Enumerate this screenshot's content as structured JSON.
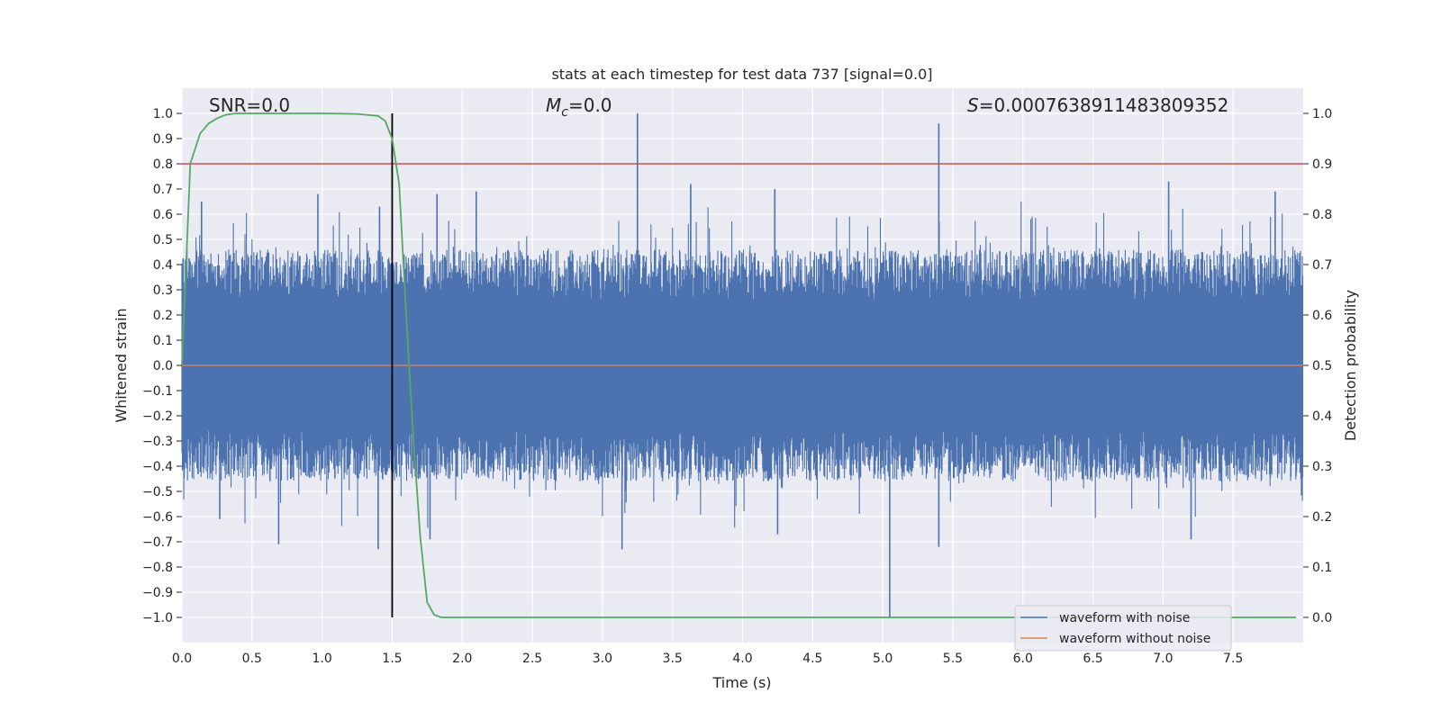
{
  "chart_data": {
    "type": "line",
    "title": "stats at each timestep for test data 737 [signal=0.0]",
    "xlabel": "Time (s)",
    "ylabel": "Whitened strain",
    "y2label": "Detection probability",
    "xlim": [
      0.0,
      8.0
    ],
    "ylim": [
      -1.1,
      1.1
    ],
    "y2lim": [
      -0.05,
      1.05
    ],
    "x_ticks": [
      "0.0",
      "0.5",
      "1.0",
      "1.5",
      "2.0",
      "2.5",
      "3.0",
      "3.5",
      "4.0",
      "4.5",
      "5.0",
      "5.5",
      "6.0",
      "6.5",
      "7.0",
      "7.5"
    ],
    "x_tick_values": [
      0.0,
      0.5,
      1.0,
      1.5,
      2.0,
      2.5,
      3.0,
      3.5,
      4.0,
      4.5,
      5.0,
      5.5,
      6.0,
      6.5,
      7.0,
      7.5
    ],
    "y_ticks": [
      "1.0",
      "0.9",
      "0.8",
      "0.7",
      "0.6",
      "0.5",
      "0.4",
      "0.3",
      "0.2",
      "0.1",
      "0.0",
      "−0.1",
      "−0.2",
      "−0.3",
      "−0.4",
      "−0.5",
      "−0.6",
      "−0.7",
      "−0.8",
      "−0.9",
      "−1.0"
    ],
    "y_tick_values": [
      1.0,
      0.9,
      0.8,
      0.7,
      0.6,
      0.5,
      0.4,
      0.3,
      0.2,
      0.1,
      0.0,
      -0.1,
      -0.2,
      -0.3,
      -0.4,
      -0.5,
      -0.6,
      -0.7,
      -0.8,
      -0.9,
      -1.0
    ],
    "y2_ticks": [
      "1.0",
      "0.9",
      "0.8",
      "0.7",
      "0.6",
      "0.5",
      "0.4",
      "0.3",
      "0.2",
      "0.1",
      "0.0"
    ],
    "y2_tick_values": [
      1.0,
      0.9,
      0.8,
      0.7,
      0.6,
      0.5,
      0.4,
      0.3,
      0.2,
      0.1,
      0.0
    ],
    "grid": true,
    "annotations": {
      "snr": "SNR=0.0",
      "mc_symbol": "M",
      "mc_sub": "c",
      "mc_value": "=0.0",
      "s_symbol": "S",
      "s_value": "=0.0007638911483809352"
    },
    "threshold": {
      "value": 0.9,
      "axis": "y2",
      "color": "#c44e52"
    },
    "vline": {
      "x": 1.5,
      "ymin": -1.0,
      "ymax": 1.0,
      "color": "#000000"
    },
    "noise_series": {
      "name": "waveform with noise",
      "color": "#4c72b0",
      "envelope_mean": 0.36,
      "envelope_spread": 0.1,
      "spikes": [
        {
          "x": 0.14,
          "y": 0.65
        },
        {
          "x": 0.97,
          "y": 0.68
        },
        {
          "x": 1.41,
          "y": 0.63
        },
        {
          "x": 1.82,
          "y": 0.68
        },
        {
          "x": 2.1,
          "y": 0.69
        },
        {
          "x": 3.25,
          "y": 1.0
        },
        {
          "x": 3.63,
          "y": 0.72
        },
        {
          "x": 4.23,
          "y": 0.7
        },
        {
          "x": 5.4,
          "y": 0.96
        },
        {
          "x": 7.04,
          "y": 0.73
        },
        {
          "x": 7.8,
          "y": 0.69
        },
        {
          "x": 0.27,
          "y": -0.61
        },
        {
          "x": 0.69,
          "y": -0.71
        },
        {
          "x": 1.4,
          "y": -0.73
        },
        {
          "x": 1.77,
          "y": -0.69
        },
        {
          "x": 3.14,
          "y": -0.73
        },
        {
          "x": 4.25,
          "y": -0.67
        },
        {
          "x": 5.05,
          "y": -1.0
        },
        {
          "x": 5.4,
          "y": -0.72
        },
        {
          "x": 7.2,
          "y": -0.69
        }
      ]
    },
    "clean_series": {
      "name": "waveform without noise",
      "color": "#dd8452",
      "value": 0.0
    },
    "probability_series": {
      "name": "detection probability",
      "color": "#55a868",
      "x": [
        0.0,
        0.06,
        0.13,
        0.19,
        0.25,
        0.31,
        0.38,
        0.5,
        0.75,
        1.0,
        1.25,
        1.4,
        1.45,
        1.5,
        1.55,
        1.6,
        1.65,
        1.7,
        1.75,
        1.8,
        1.85,
        1.9,
        2.0,
        7.95
      ],
      "y": [
        0.5,
        0.9,
        0.96,
        0.98,
        0.99,
        0.997,
        1.0,
        1.0,
        1.0,
        1.0,
        0.999,
        0.995,
        0.985,
        0.95,
        0.86,
        0.6,
        0.36,
        0.16,
        0.03,
        0.005,
        0.0,
        0.0,
        0.0,
        0.0
      ]
    },
    "legend": {
      "position": "lower-right",
      "entries": [
        {
          "label": "waveform with noise",
          "color": "#4c72b0"
        },
        {
          "label": "waveform without noise",
          "color": "#dd8452"
        }
      ]
    }
  }
}
